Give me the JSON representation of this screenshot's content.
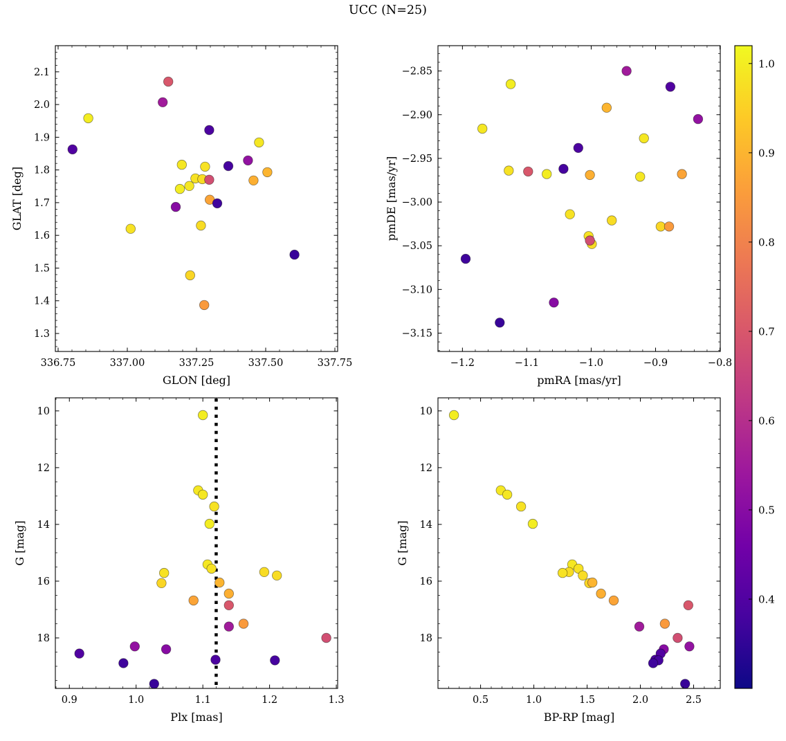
{
  "title": "UCC (N=25)",
  "chart_data": {
    "type": "scatter",
    "title": "UCC (N=25)",
    "n_members": 25,
    "legend_position": "none",
    "grid": false,
    "colorbar": {
      "cmap": "plasma",
      "vmin": 0.3,
      "vmax": 1.02,
      "ticks": [
        {
          "v": 1.0,
          "label": "1.0"
        },
        {
          "v": 0.9,
          "label": "0.9"
        },
        {
          "v": 0.8,
          "label": "0.8"
        },
        {
          "v": 0.7,
          "label": "0.7"
        },
        {
          "v": 0.6,
          "label": "0.6"
        },
        {
          "v": 0.5,
          "label": "0.5"
        },
        {
          "v": 0.4,
          "label": "0.4"
        }
      ]
    },
    "panels": [
      {
        "id": "glon-glat",
        "x_field": "glon",
        "y_field": "glat",
        "xlabel": "GLON [deg]",
        "ylabel": "GLAT [deg]",
        "xlim": [
          336.74,
          337.76
        ],
        "ylim": [
          1.245,
          2.18
        ],
        "xticks": [
          {
            "v": 336.75,
            "label": "336.75"
          },
          {
            "v": 337.0,
            "label": "337.00"
          },
          {
            "v": 337.25,
            "label": "337.25"
          },
          {
            "v": 337.5,
            "label": "337.50"
          },
          {
            "v": 337.75,
            "label": "337.75"
          }
        ],
        "yticks": [
          {
            "v": 1.3,
            "label": "1.3"
          },
          {
            "v": 1.4,
            "label": "1.4"
          },
          {
            "v": 1.5,
            "label": "1.5"
          },
          {
            "v": 1.6,
            "label": "1.6"
          },
          {
            "v": 1.7,
            "label": "1.7"
          },
          {
            "v": 1.8,
            "label": "1.8"
          },
          {
            "v": 1.9,
            "label": "1.9"
          },
          {
            "v": 2.0,
            "label": "2.0"
          },
          {
            "v": 2.1,
            "label": "2.1"
          }
        ],
        "x_minor_n": 5,
        "y_minor_n": 5
      },
      {
        "id": "pm",
        "x_field": "pmra",
        "y_field": "pmde",
        "xlabel": "pmRA [mas/yr]",
        "ylabel": "pmDE [mas/yr]",
        "xlim": [
          -1.238,
          -0.7995
        ],
        "ylim": [
          -3.171,
          -2.821
        ],
        "xticks": [
          {
            "v": -1.2,
            "label": "−1.2"
          },
          {
            "v": -1.1,
            "label": "−1.1"
          },
          {
            "v": -1.0,
            "label": "−1.0"
          },
          {
            "v": -0.9,
            "label": "−0.9"
          },
          {
            "v": -0.8,
            "label": "−0.8"
          }
        ],
        "yticks": [
          {
            "v": -2.85,
            "label": "−2.85"
          },
          {
            "v": -2.9,
            "label": "−2.90"
          },
          {
            "v": -2.95,
            "label": "−2.95"
          },
          {
            "v": -3.0,
            "label": "−3.00"
          },
          {
            "v": -3.05,
            "label": "−3.05"
          },
          {
            "v": -3.1,
            "label": "−3.10"
          },
          {
            "v": -3.15,
            "label": "−3.15"
          }
        ],
        "x_minor_n": 5,
        "y_minor_n": 5
      },
      {
        "id": "plx-g",
        "x_field": "plx",
        "y_field": "g",
        "xlabel": "Plx [mas]",
        "ylabel": "G [mag]",
        "xlim": [
          0.879,
          1.302
        ],
        "ylim": [
          19.78,
          9.54
        ],
        "vline": 1.12,
        "xticks": [
          {
            "v": 0.9,
            "label": "0.9"
          },
          {
            "v": 1.0,
            "label": "1.0"
          },
          {
            "v": 1.1,
            "label": "1.1"
          },
          {
            "v": 1.2,
            "label": "1.2"
          },
          {
            "v": 1.3,
            "label": "1.3"
          }
        ],
        "yticks": [
          {
            "v": 10,
            "label": "10"
          },
          {
            "v": 12,
            "label": "12"
          },
          {
            "v": 14,
            "label": "14"
          },
          {
            "v": 16,
            "label": "16"
          },
          {
            "v": 18,
            "label": "18"
          }
        ],
        "x_minor_n": 5,
        "y_minor_n": 4
      },
      {
        "id": "cmd",
        "x_field": "bprp",
        "y_field": "g",
        "xlabel": "BP-RP [mag]",
        "ylabel": "G [mag]",
        "xlim": [
          0.1,
          2.75
        ],
        "ylim": [
          19.78,
          9.54
        ],
        "xticks": [
          {
            "v": 0.5,
            "label": "0.5"
          },
          {
            "v": 1.0,
            "label": "1.0"
          },
          {
            "v": 1.5,
            "label": "1.5"
          },
          {
            "v": 2.0,
            "label": "2.0"
          },
          {
            "v": 2.5,
            "label": "2.5"
          }
        ],
        "yticks": [
          {
            "v": 10,
            "label": "10"
          },
          {
            "v": 12,
            "label": "12"
          },
          {
            "v": 14,
            "label": "14"
          },
          {
            "v": 16,
            "label": "16"
          },
          {
            "v": 18,
            "label": "18"
          }
        ],
        "x_minor_n": 5,
        "y_minor_n": 4
      }
    ],
    "stars": [
      {
        "glon": 336.859,
        "glat": 1.958,
        "pmra": -1.125,
        "pmde": -2.865,
        "plx": 1.1,
        "g": 10.15,
        "bprp": 0.25,
        "p": 1.0
      },
      {
        "glon": 337.476,
        "glat": 1.884,
        "pmra": -1.169,
        "pmde": -2.916,
        "plx": 1.093,
        "g": 12.8,
        "bprp": 0.69,
        "p": 0.99
      },
      {
        "glon": 337.197,
        "glat": 1.816,
        "pmra": -0.918,
        "pmde": -2.927,
        "plx": 1.1,
        "g": 12.95,
        "bprp": 0.75,
        "p": 0.99
      },
      {
        "glon": 337.281,
        "glat": 1.81,
        "pmra": -1.128,
        "pmde": -2.964,
        "plx": 1.117,
        "g": 13.37,
        "bprp": 0.88,
        "p": 0.98
      },
      {
        "glon": 337.19,
        "glat": 1.742,
        "pmra": -1.069,
        "pmde": -2.968,
        "plx": 1.11,
        "g": 13.98,
        "bprp": 0.99,
        "p": 1.0
      },
      {
        "glon": 337.224,
        "glat": 1.751,
        "pmra": -0.924,
        "pmde": -2.971,
        "plx": 1.107,
        "g": 15.41,
        "bprp": 1.36,
        "p": 0.99
      },
      {
        "glon": 337.246,
        "glat": 1.774,
        "pmra": -1.033,
        "pmde": -3.014,
        "plx": 1.113,
        "g": 15.56,
        "bprp": 1.42,
        "p": 0.98
      },
      {
        "glon": 337.271,
        "glat": 1.772,
        "pmra": -0.968,
        "pmde": -3.021,
        "plx": 1.192,
        "g": 15.68,
        "bprp": 1.33,
        "p": 0.97
      },
      {
        "glon": 337.012,
        "glat": 1.62,
        "pmra": -1.004,
        "pmde": -3.039,
        "plx": 1.042,
        "g": 15.71,
        "bprp": 1.27,
        "p": 0.98
      },
      {
        "glon": 337.266,
        "glat": 1.63,
        "pmra": -0.999,
        "pmde": -3.048,
        "plx": 1.211,
        "g": 15.8,
        "bprp": 1.46,
        "p": 0.97
      },
      {
        "glon": 337.227,
        "glat": 1.478,
        "pmra": -0.892,
        "pmde": -3.028,
        "plx": 1.038,
        "g": 16.07,
        "bprp": 1.52,
        "p": 0.96
      },
      {
        "glon": 337.506,
        "glat": 1.793,
        "pmra": -0.976,
        "pmde": -2.892,
        "plx": 1.125,
        "g": 16.05,
        "bprp": 1.55,
        "p": 0.9
      },
      {
        "glon": 337.456,
        "glat": 1.768,
        "pmra": -1.002,
        "pmde": -2.969,
        "plx": 1.139,
        "g": 16.44,
        "bprp": 1.63,
        "p": 0.89
      },
      {
        "glon": 337.298,
        "glat": 1.709,
        "pmra": -0.859,
        "pmde": -2.968,
        "plx": 1.086,
        "g": 16.68,
        "bprp": 1.75,
        "p": 0.87
      },
      {
        "glon": 337.278,
        "glat": 1.387,
        "pmra": -0.879,
        "pmde": -3.028,
        "plx": 1.161,
        "g": 17.5,
        "bprp": 2.23,
        "p": 0.85
      },
      {
        "glon": 337.148,
        "glat": 2.07,
        "pmra": -1.098,
        "pmde": -2.965,
        "plx": 1.139,
        "g": 16.85,
        "bprp": 2.45,
        "p": 0.7
      },
      {
        "glon": 337.296,
        "glat": 1.77,
        "pmra": -1.002,
        "pmde": -3.044,
        "plx": 1.285,
        "g": 18.0,
        "bprp": 2.35,
        "p": 0.68
      },
      {
        "glon": 337.128,
        "glat": 2.007,
        "pmra": -0.945,
        "pmde": -2.85,
        "plx": 1.139,
        "g": 17.6,
        "bprp": 1.99,
        "p": 0.55
      },
      {
        "glon": 337.436,
        "glat": 1.829,
        "pmra": -0.834,
        "pmde": -2.905,
        "plx": 0.998,
        "g": 18.3,
        "bprp": 2.46,
        "p": 0.52
      },
      {
        "glon": 337.175,
        "glat": 1.687,
        "pmra": -1.058,
        "pmde": -3.115,
        "plx": 1.045,
        "g": 18.4,
        "bprp": 2.22,
        "p": 0.5
      },
      {
        "glon": 336.802,
        "glat": 1.863,
        "pmra": -0.877,
        "pmde": -2.868,
        "plx": 0.915,
        "g": 18.55,
        "bprp": 2.19,
        "p": 0.4
      },
      {
        "glon": 337.296,
        "glat": 1.922,
        "pmra": -1.02,
        "pmde": -2.938,
        "plx": 1.119,
        "g": 18.77,
        "bprp": 2.14,
        "p": 0.39
      },
      {
        "glon": 337.365,
        "glat": 1.812,
        "pmra": -1.043,
        "pmde": -2.962,
        "plx": 1.208,
        "g": 18.79,
        "bprp": 2.17,
        "p": 0.38
      },
      {
        "glon": 337.325,
        "glat": 1.698,
        "pmra": -1.195,
        "pmde": -3.065,
        "plx": 0.981,
        "g": 18.89,
        "bprp": 2.12,
        "p": 0.37
      },
      {
        "glon": 337.604,
        "glat": 1.541,
        "pmra": -1.142,
        "pmde": -3.138,
        "plx": 1.027,
        "g": 19.62,
        "bprp": 2.42,
        "p": 0.36
      }
    ]
  }
}
